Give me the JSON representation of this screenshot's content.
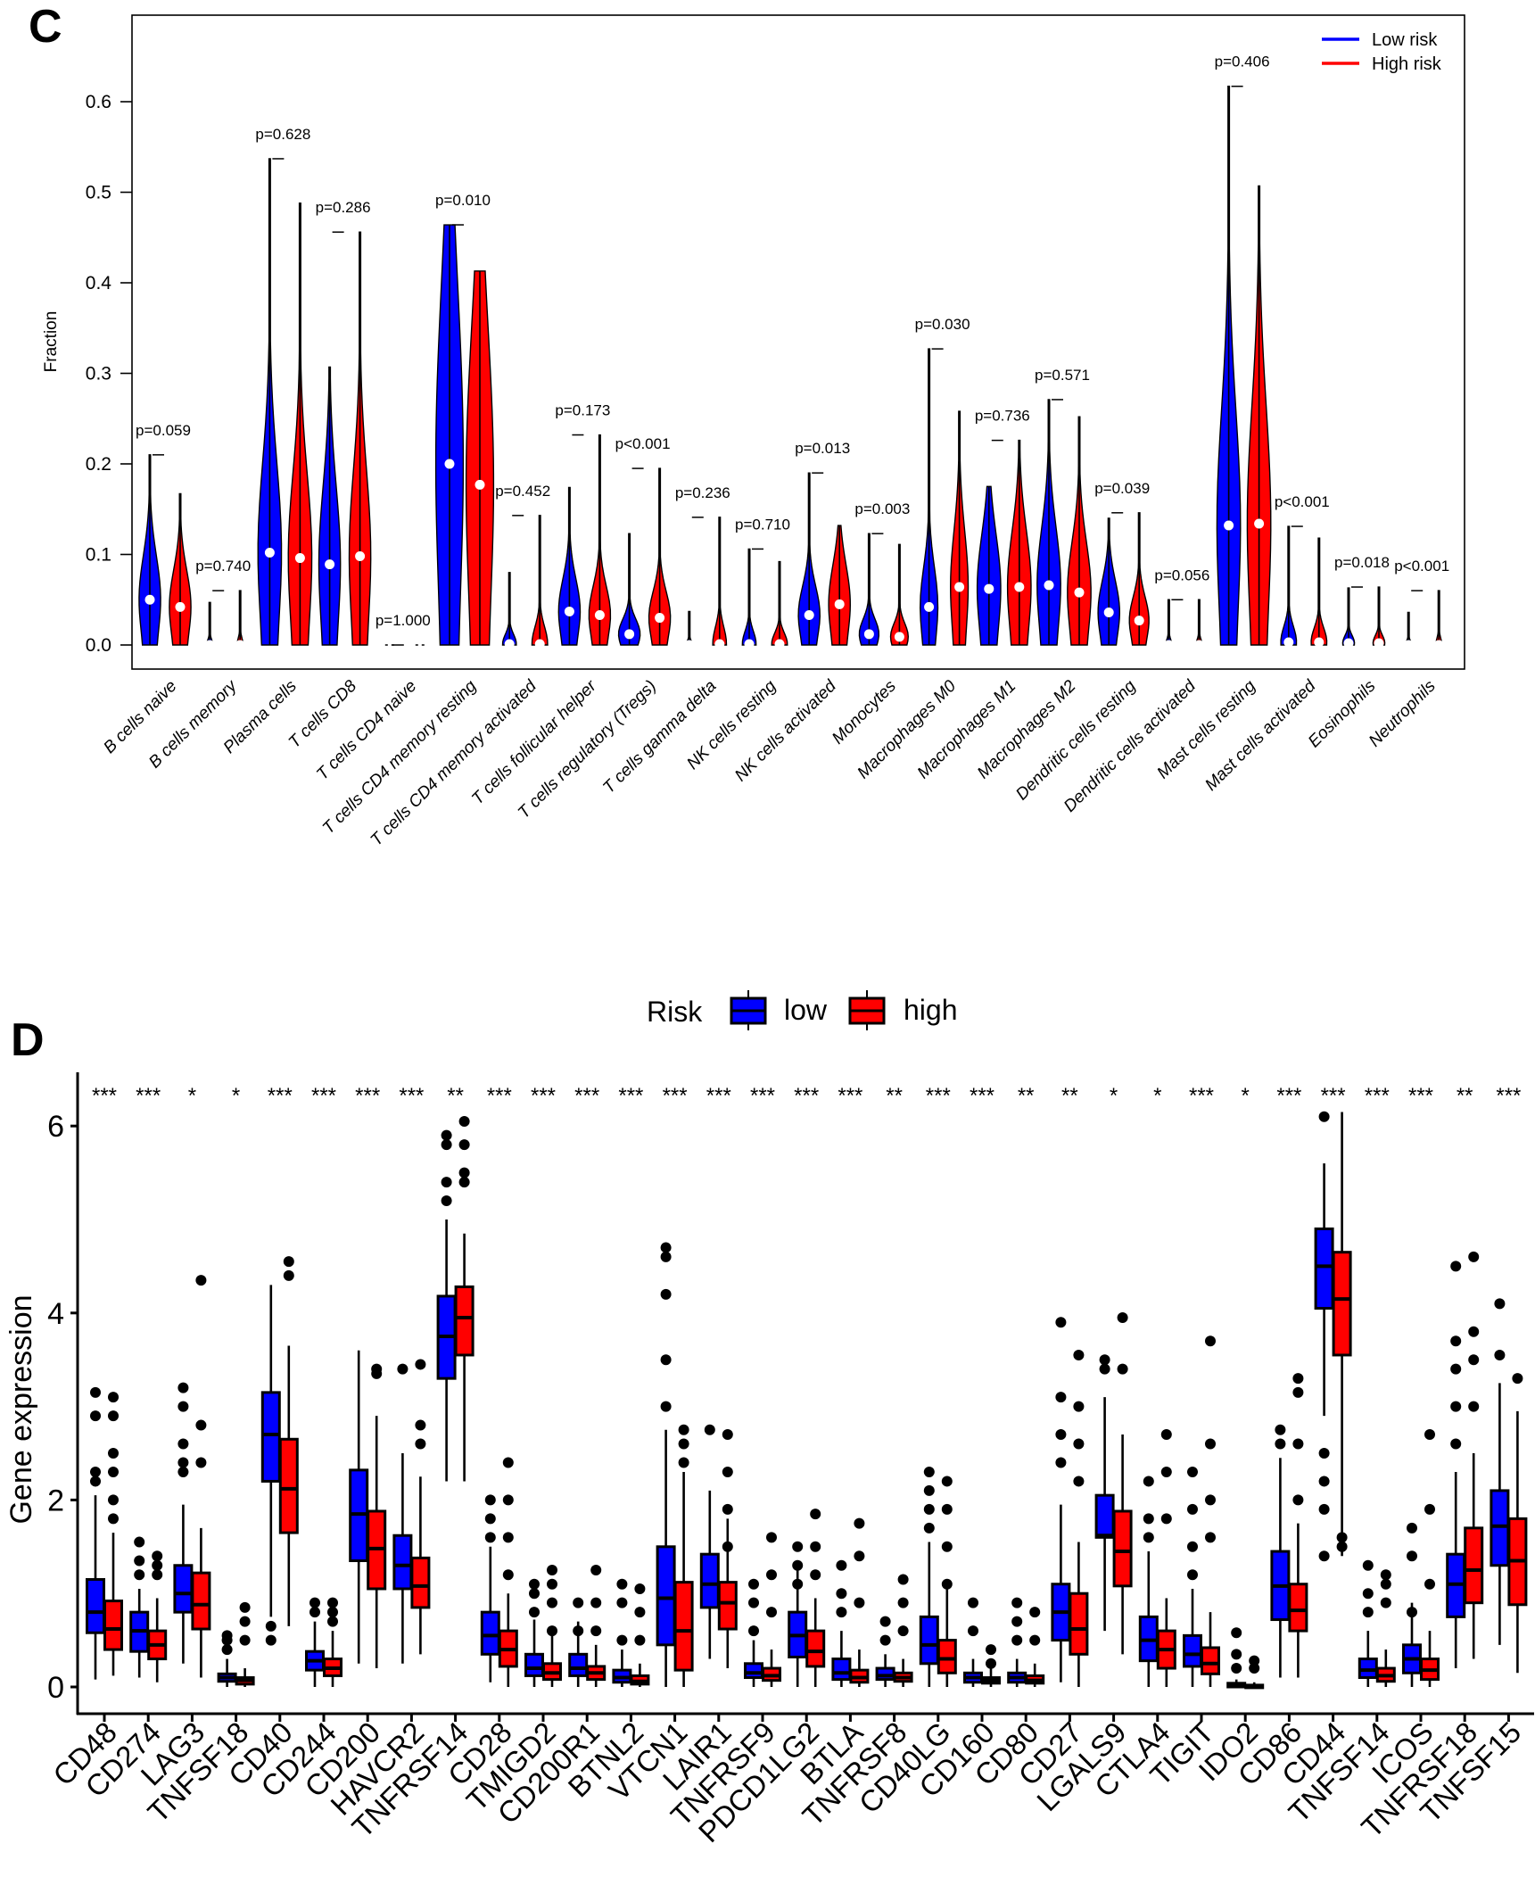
{
  "panels": {
    "c_letter": "C",
    "d_letter": "D"
  },
  "chart_data": [
    {
      "type": "violin",
      "title": "",
      "xlabel": "",
      "ylabel": "Fraction",
      "ylim": [
        -0.03,
        0.69
      ],
      "yticks": [
        0.0,
        0.1,
        0.2,
        0.3,
        0.4,
        0.5,
        0.6
      ],
      "ytick_labels": [
        "0.0",
        "0.1",
        "0.2",
        "0.3",
        "0.4",
        "0.5",
        "0.6"
      ],
      "legend": {
        "position": "top-right",
        "entries": [
          {
            "label": "Low risk",
            "color": "#0000ff"
          },
          {
            "label": "High risk",
            "color": "#ff0000"
          }
        ]
      },
      "categories": [
        "B cells naive",
        "B cells memory",
        "Plasma cells",
        "T cells CD8",
        "T cells CD4 naive",
        "T cells CD4 memory resting",
        "T cells CD4 memory activated",
        "T cells follicular helper",
        "T cells regulatory (Tregs)",
        "T cells gamma delta",
        "NK cells resting",
        "NK cells activated",
        "Monocytes",
        "Macrophages M0",
        "Macrophages M1",
        "Macrophages M2",
        "Dendritic cells resting",
        "Dendritic cells activated",
        "Mast cells resting",
        "Mast cells activated",
        "Eosinophils",
        "Neutrophils"
      ],
      "p_values": [
        "p=0.059",
        "p=0.740",
        "p=0.628",
        "p=0.286",
        "p=1.000",
        "p=0.010",
        "p=0.452",
        "p=0.173",
        "p<0.001",
        "p=0.236",
        "p=0.710",
        "p=0.013",
        "p=0.003",
        "p=0.030",
        "p=0.736",
        "p=0.571",
        "p=0.039",
        "p=0.056",
        "p=0.406",
        "p<0.001",
        "p=0.018",
        "p<0.001"
      ],
      "series": [
        {
          "name": "Low risk",
          "color": "#0000ff",
          "max": [
            0.21,
            0.047,
            0.537,
            0.307,
            0.0,
            0.464,
            0.08,
            0.174,
            0.123,
            0.037,
            0.106,
            0.19,
            0.123,
            0.327,
            0.175,
            0.271,
            0.14,
            0.05,
            0.617,
            0.131,
            0.063,
            0.036
          ],
          "median": [
            0.05,
            0.0,
            0.102,
            0.089,
            0.0,
            0.2,
            0.001,
            0.037,
            0.012,
            0.0,
            0.001,
            0.033,
            0.012,
            0.042,
            0.062,
            0.066,
            0.036,
            0.0,
            0.132,
            0.003,
            0.002,
            0.0
          ],
          "width": [
            0.55,
            0.15,
            0.6,
            0.55,
            0.1,
            0.7,
            0.35,
            0.55,
            0.55,
            0.15,
            0.35,
            0.55,
            0.5,
            0.45,
            0.6,
            0.6,
            0.55,
            0.15,
            0.6,
            0.4,
            0.3,
            0.15
          ]
        },
        {
          "name": "High risk",
          "color": "#ff0000",
          "max": [
            0.167,
            0.06,
            0.488,
            0.456,
            0.0,
            0.413,
            0.143,
            0.232,
            0.195,
            0.141,
            0.092,
            0.132,
            0.111,
            0.258,
            0.226,
            0.252,
            0.146,
            0.05,
            0.507,
            0.118,
            0.064,
            0.06
          ],
          "median": [
            0.042,
            0.0,
            0.096,
            0.098,
            0.0,
            0.177,
            0.001,
            0.033,
            0.03,
            0.001,
            0.001,
            0.045,
            0.009,
            0.064,
            0.064,
            0.058,
            0.027,
            0.0,
            0.134,
            0.003,
            0.002,
            0.0
          ],
          "width": [
            0.55,
            0.15,
            0.6,
            0.55,
            0.1,
            0.7,
            0.4,
            0.55,
            0.55,
            0.35,
            0.4,
            0.55,
            0.45,
            0.45,
            0.6,
            0.6,
            0.5,
            0.15,
            0.6,
            0.4,
            0.3,
            0.15
          ]
        }
      ]
    },
    {
      "type": "box",
      "title": "",
      "xlabel": "",
      "ylabel": "Gene expression",
      "ylim": [
        -0.3,
        6.5
      ],
      "yticks": [
        0,
        2,
        4,
        6
      ],
      "ytick_labels": [
        "0",
        "2",
        "4",
        "6"
      ],
      "legend": {
        "title": "Risk",
        "position": "top",
        "entries": [
          {
            "label": "low",
            "color": "#0000ff"
          },
          {
            "label": "high",
            "color": "#ff0000"
          }
        ]
      },
      "categories": [
        "CD48",
        "CD274",
        "LAG3",
        "TNFSF18",
        "CD40",
        "CD244",
        "CD200",
        "HAVCR2",
        "TNFRSF14",
        "CD28",
        "TMIGD2",
        "CD200R1",
        "BTNL2",
        "VTCN1",
        "LAIR1",
        "TNFRSF9",
        "PDCD1LG2",
        "BTLA",
        "TNFRSF8",
        "CD40LG",
        "CD160",
        "CD80",
        "CD27",
        "LGALS9",
        "CTLA4",
        "TIGIT",
        "IDO2",
        "CD86",
        "CD44",
        "TNFSF14",
        "ICOS",
        "TNFRSF18",
        "TNFSF15"
      ],
      "significance": [
        "***",
        "***",
        "*",
        "*",
        "***",
        "***",
        "***",
        "***",
        "**",
        "***",
        "***",
        "***",
        "***",
        "***",
        "***",
        "***",
        "***",
        "***",
        "**",
        "***",
        "***",
        "**",
        "**",
        "*",
        "*",
        "***",
        "*",
        "***",
        "***",
        "***",
        "***",
        "**",
        "***"
      ],
      "series": [
        {
          "name": "low",
          "color": "#0000ff",
          "q1": [
            0.58,
            0.38,
            0.8,
            0.06,
            2.2,
            0.18,
            1.35,
            1.05,
            3.3,
            0.35,
            0.12,
            0.12,
            0.05,
            0.45,
            0.85,
            0.1,
            0.32,
            0.08,
            0.08,
            0.25,
            0.05,
            0.05,
            0.5,
            1.6,
            0.28,
            0.22,
            0.0,
            0.72,
            4.05,
            0.1,
            0.15,
            0.75,
            1.3
          ],
          "median": [
            0.8,
            0.6,
            1.0,
            0.1,
            2.7,
            0.28,
            1.85,
            1.3,
            3.75,
            0.55,
            0.2,
            0.2,
            0.1,
            0.95,
            1.1,
            0.15,
            0.55,
            0.15,
            0.12,
            0.45,
            0.1,
            0.1,
            0.8,
            1.62,
            0.5,
            0.35,
            0.02,
            1.08,
            4.5,
            0.18,
            0.3,
            1.1,
            1.72
          ],
          "q3": [
            1.15,
            0.8,
            1.3,
            0.14,
            3.15,
            0.38,
            2.32,
            1.62,
            4.18,
            0.8,
            0.35,
            0.35,
            0.18,
            1.5,
            1.42,
            0.25,
            0.8,
            0.3,
            0.2,
            0.75,
            0.15,
            0.15,
            1.1,
            2.05,
            0.75,
            0.55,
            0.04,
            1.45,
            4.9,
            0.3,
            0.45,
            1.42,
            2.1
          ],
          "lo": [
            0.08,
            0.1,
            0.25,
            0.0,
            0.75,
            0.0,
            0.25,
            0.25,
            2.2,
            0.05,
            0.0,
            0.0,
            0.0,
            0.0,
            0.3,
            0.0,
            0.0,
            0.0,
            0.0,
            0.0,
            0.0,
            0.0,
            0.05,
            0.6,
            0.0,
            0.0,
            0.0,
            0.1,
            2.9,
            0.0,
            0.0,
            0.2,
            0.45
          ],
          "hi": [
            2.05,
            1.05,
            1.95,
            0.3,
            4.3,
            0.7,
            3.6,
            2.5,
            5.0,
            1.5,
            0.72,
            0.7,
            0.4,
            2.75,
            2.1,
            0.5,
            1.3,
            0.6,
            0.35,
            1.55,
            0.3,
            0.3,
            1.95,
            3.1,
            1.45,
            1.05,
            0.08,
            2.45,
            5.6,
            0.6,
            0.9,
            2.3,
            3.25
          ],
          "outliers": [
            [
              2.2,
              2.3,
              2.9,
              3.15
            ],
            [
              1.2,
              1.35,
              1.55
            ],
            [
              2.3,
              2.4,
              2.6,
              3.0,
              3.2
            ],
            [
              0.4,
              0.5,
              0.55
            ],
            [
              0.5,
              0.65
            ],
            [
              0.8,
              0.9
            ],
            [],
            [
              3.4
            ],
            [
              5.2,
              5.4,
              5.8,
              5.9
            ],
            [
              1.6,
              1.8,
              2.0
            ],
            [
              0.8,
              1.0,
              1.1
            ],
            [
              0.6,
              0.9
            ],
            [
              0.5,
              0.9,
              1.1
            ],
            [
              3.0,
              3.5,
              4.2,
              4.6,
              4.7
            ],
            [
              2.75
            ],
            [
              0.6,
              0.9,
              1.1
            ],
            [
              1.1,
              1.3,
              1.5
            ],
            [
              0.8,
              1.0,
              1.3
            ],
            [
              0.5,
              0.7
            ],
            [
              1.7,
              1.9,
              2.1,
              2.3
            ],
            [
              0.6,
              0.9
            ],
            [
              0.5,
              0.7,
              0.9
            ],
            [
              2.4,
              2.7,
              3.1,
              3.9
            ],
            [
              3.4,
              3.5
            ],
            [
              1.6,
              1.8,
              2.2
            ],
            [
              1.2,
              1.5,
              1.9,
              2.3
            ],
            [
              0.2,
              0.35,
              0.58
            ],
            [
              2.6,
              2.75
            ],
            [
              1.4,
              1.9,
              2.2,
              2.5,
              6.1
            ],
            [
              0.8,
              1.0,
              1.3
            ],
            [
              0.8,
              1.4,
              1.7
            ],
            [
              2.6,
              3.0,
              3.4,
              3.7,
              4.5
            ],
            [
              3.55,
              4.1
            ]
          ]
        },
        {
          "name": "high",
          "color": "#ff0000",
          "q1": [
            0.4,
            0.3,
            0.62,
            0.03,
            1.65,
            0.12,
            1.05,
            0.85,
            3.55,
            0.22,
            0.08,
            0.08,
            0.03,
            0.18,
            0.62,
            0.07,
            0.22,
            0.05,
            0.06,
            0.15,
            0.04,
            0.04,
            0.35,
            1.08,
            0.2,
            0.14,
            0.0,
            0.6,
            3.55,
            0.06,
            0.08,
            0.9,
            0.88
          ],
          "median": [
            0.62,
            0.45,
            0.88,
            0.07,
            2.12,
            0.2,
            1.48,
            1.08,
            3.95,
            0.4,
            0.15,
            0.15,
            0.06,
            0.6,
            0.9,
            0.12,
            0.38,
            0.1,
            0.1,
            0.3,
            0.07,
            0.07,
            0.62,
            1.45,
            0.4,
            0.25,
            0.01,
            0.82,
            4.15,
            0.12,
            0.18,
            1.25,
            1.35
          ],
          "q3": [
            0.92,
            0.6,
            1.22,
            0.1,
            2.65,
            0.3,
            1.88,
            1.38,
            4.28,
            0.6,
            0.25,
            0.22,
            0.12,
            1.12,
            1.12,
            0.2,
            0.6,
            0.18,
            0.15,
            0.5,
            0.1,
            0.12,
            1.0,
            1.88,
            0.6,
            0.42,
            0.02,
            1.1,
            4.65,
            0.2,
            0.3,
            1.7,
            1.8
          ],
          "lo": [
            0.12,
            0.05,
            0.1,
            0.0,
            0.65,
            0.0,
            0.2,
            0.35,
            2.2,
            0.0,
            0.0,
            0.0,
            0.0,
            0.0,
            0.2,
            0.0,
            0.0,
            0.0,
            0.0,
            0.0,
            0.0,
            0.0,
            0.0,
            0.35,
            0.0,
            0.0,
            0.0,
            0.1,
            1.4,
            0.0,
            0.0,
            0.3,
            0.15
          ],
          "hi": [
            1.65,
            0.95,
            1.7,
            0.2,
            3.65,
            0.6,
            2.9,
            2.25,
            4.85,
            1.0,
            0.55,
            0.45,
            0.25,
            2.3,
            1.8,
            0.4,
            0.95,
            0.4,
            0.3,
            1.05,
            0.2,
            0.25,
            1.55,
            2.7,
            0.95,
            0.8,
            0.05,
            1.75,
            6.15,
            0.4,
            0.6,
            2.5,
            2.95
          ],
          "outliers": [
            [
              1.8,
              2.0,
              2.3,
              2.5,
              2.9,
              3.1
            ],
            [
              1.2,
              1.3,
              1.4
            ],
            [
              2.4,
              2.8,
              4.35
            ],
            [
              0.5,
              0.7,
              0.85
            ],
            [
              4.4,
              4.55
            ],
            [
              0.7,
              0.8,
              0.9
            ],
            [
              3.35,
              3.4
            ],
            [
              2.6,
              2.8,
              3.45
            ],
            [
              5.4,
              5.5,
              5.8,
              6.05
            ],
            [
              1.2,
              1.6,
              2.0,
              2.4
            ],
            [
              0.6,
              0.9,
              1.1,
              1.25
            ],
            [
              0.6,
              0.9,
              1.25
            ],
            [
              0.5,
              0.8,
              1.05
            ],
            [
              2.4,
              2.6,
              2.75
            ],
            [
              1.5,
              1.9,
              2.3,
              2.7
            ],
            [
              0.8,
              1.2,
              1.6
            ],
            [
              1.2,
              1.5,
              1.85
            ],
            [
              0.9,
              1.4,
              1.75
            ],
            [
              0.6,
              0.9,
              1.15
            ],
            [
              1.1,
              1.5,
              1.9,
              2.2
            ],
            [
              0.25,
              0.4
            ],
            [
              0.5,
              0.8
            ],
            [
              2.2,
              2.6,
              3.0,
              3.55
            ],
            [
              3.4,
              3.95
            ],
            [
              1.8,
              2.3,
              2.7
            ],
            [
              1.6,
              2.0,
              2.6,
              3.7
            ],
            [
              0.2,
              0.28
            ],
            [
              2.0,
              2.6,
              3.15,
              3.3
            ],
            [
              1.5,
              1.6
            ],
            [
              0.9,
              1.1,
              1.2
            ],
            [
              1.1,
              1.9,
              2.7
            ],
            [
              3.0,
              3.5,
              3.8,
              4.6
            ],
            [
              3.3
            ]
          ]
        }
      ]
    }
  ]
}
